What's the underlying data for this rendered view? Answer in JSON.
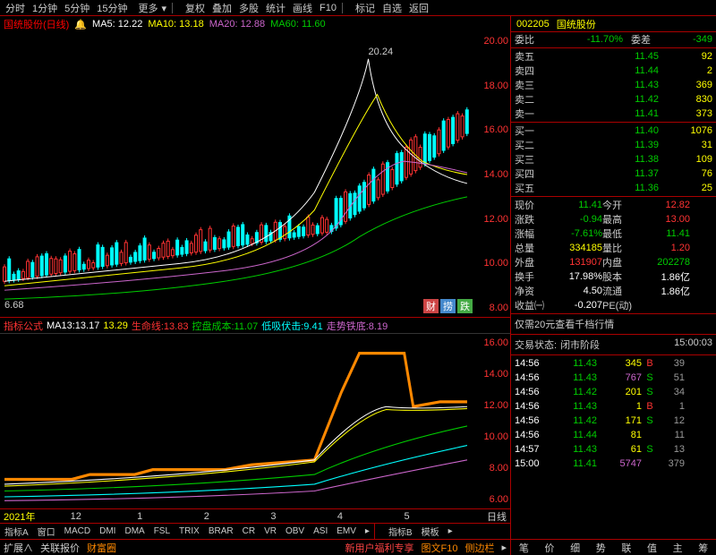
{
  "toolbar": {
    "items": [
      "分时",
      "1分钟",
      "5分钟",
      "15分钟",
      "更多"
    ],
    "items2": [
      "复权",
      "叠加",
      "多股",
      "统计",
      "画线",
      "F10",
      "标记",
      "自选",
      "返回"
    ]
  },
  "stock": {
    "code": "002205",
    "name": "国统股份"
  },
  "chartHeader": {
    "name": "国统股份(日线)",
    "ma5": {
      "label": "MA5:",
      "val": "12.22",
      "color": "#fff"
    },
    "ma10": {
      "label": "MA10:",
      "val": "13.18",
      "color": "#ff0"
    },
    "ma20": {
      "label": "MA20:",
      "val": "12.88",
      "color": "#c6c"
    },
    "ma60": {
      "label": "MA60:",
      "val": "11.60",
      "color": "#0c0"
    }
  },
  "priceAxis": {
    "ticks": [
      "20.00",
      "18.00",
      "16.00",
      "14.00",
      "12.00",
      "10.00",
      "8.00"
    ],
    "peak": "20.24",
    "low": "6.68"
  },
  "indHeader": {
    "name": "指标公式",
    "ma13": {
      "label": "MA13:",
      "v1": "13.17",
      "v2": "13.29"
    },
    "life": {
      "label": "生命线:",
      "val": "13.83",
      "color": "#f33"
    },
    "cost": {
      "label": "控盘成本:",
      "val": "11.07",
      "color": "#0c0"
    },
    "lowbuy": {
      "label": "低吸伏击:",
      "val": "9.41",
      "color": "#0ff"
    },
    "trend": {
      "label": "走势铁底:",
      "val": "8.19",
      "color": "#c6c"
    }
  },
  "indAxis": {
    "ticks": [
      "16.00",
      "14.00",
      "12.00",
      "10.00",
      "8.00",
      "6.00"
    ]
  },
  "timeAxis": {
    "items": [
      "2021年",
      "12",
      "1",
      "2",
      "3",
      "4",
      "5"
    ],
    "right": "日线"
  },
  "bottomTabs": {
    "a": [
      "指标A",
      "窗口",
      "MACD",
      "DMI",
      "DMA",
      "FSL",
      "TRIX",
      "BRAR",
      "CR",
      "VR",
      "OBV",
      "ASI",
      "EMV"
    ],
    "b": [
      "指标B",
      "模板"
    ]
  },
  "bottomBar": {
    "items": [
      "扩展∧",
      "关联报价",
      "财富圈"
    ],
    "right": [
      "新用户福利专享",
      "图文F10",
      "侧边栏"
    ]
  },
  "wei": {
    "label": "委比",
    "v1": "-11.70%",
    "label2": "委差",
    "v2": "-349"
  },
  "asks": [
    {
      "l": "卖五",
      "p": "11.45",
      "q": "92"
    },
    {
      "l": "卖四",
      "p": "11.44",
      "q": "2"
    },
    {
      "l": "卖三",
      "p": "11.43",
      "q": "369"
    },
    {
      "l": "卖二",
      "p": "11.42",
      "q": "830"
    },
    {
      "l": "卖一",
      "p": "11.41",
      "q": "373"
    }
  ],
  "bids": [
    {
      "l": "买一",
      "p": "11.40",
      "q": "1076"
    },
    {
      "l": "买二",
      "p": "11.39",
      "q": "31"
    },
    {
      "l": "买三",
      "p": "11.38",
      "q": "109"
    },
    {
      "l": "买四",
      "p": "11.37",
      "q": "76"
    },
    {
      "l": "买五",
      "p": "11.36",
      "q": "25"
    }
  ],
  "info": [
    {
      "l1": "现价",
      "v1": "11.41",
      "c1": "green",
      "l2": "今开",
      "v2": "12.82",
      "c2": "red"
    },
    {
      "l1": "涨跌",
      "v1": "-0.94",
      "c1": "green",
      "l2": "最高",
      "v2": "13.00",
      "c2": "red"
    },
    {
      "l1": "涨幅",
      "v1": "-7.61%",
      "c1": "green",
      "l2": "最低",
      "v2": "11.41",
      "c2": "green"
    },
    {
      "l1": "总量",
      "v1": "334185",
      "c1": "yellow",
      "l2": "量比",
      "v2": "1.20",
      "c2": "red"
    },
    {
      "l1": "外盘",
      "v1": "131907",
      "c1": "red",
      "l2": "内盘",
      "v2": "202278",
      "c2": "green"
    },
    {
      "l1": "换手",
      "v1": "17.98%",
      "c1": "white",
      "l2": "股本",
      "v2": "1.86亿",
      "c2": "white"
    },
    {
      "l1": "净资",
      "v1": "4.50",
      "c1": "white",
      "l2": "流通",
      "v2": "1.86亿",
      "c2": "white"
    },
    {
      "l1": "收益㈠",
      "v1": "-0.207",
      "c1": "white",
      "l2": "PE(动)",
      "v2": "",
      "c2": "white"
    }
  ],
  "promo": "仅需20元查看千档行情",
  "status": {
    "label": "交易状态:",
    "val": "闭市阶段",
    "time": "15:00:03"
  },
  "ticks": [
    {
      "t": "14:56",
      "p": "11.43",
      "q": "345",
      "s": "B",
      "sc": "red",
      "n": "39"
    },
    {
      "t": "14:56",
      "p": "11.43",
      "q": "767",
      "qc": "purple",
      "s": "S",
      "sc": "green",
      "n": "51"
    },
    {
      "t": "14:56",
      "p": "11.42",
      "q": "201",
      "s": "S",
      "sc": "green",
      "n": "34"
    },
    {
      "t": "14:56",
      "p": "11.43",
      "q": "1",
      "s": "B",
      "sc": "red",
      "n": "1"
    },
    {
      "t": "14:56",
      "p": "11.42",
      "q": "171",
      "s": "S",
      "sc": "green",
      "n": "12"
    },
    {
      "t": "14:56",
      "p": "11.44",
      "q": "81",
      "s": "",
      "sc": "",
      "n": "11"
    },
    {
      "t": "14:57",
      "p": "11.43",
      "q": "61",
      "s": "S",
      "sc": "green",
      "n": "13"
    },
    {
      "t": "15:00",
      "p": "11.41",
      "q": "5747",
      "qc": "purple",
      "s": "",
      "sc": "",
      "n": "379"
    }
  ],
  "rightFoot": [
    "笔",
    "价",
    "细",
    "势",
    "联",
    "值",
    "主",
    "筹"
  ],
  "chartTags": [
    "财",
    "捞",
    "跌"
  ]
}
